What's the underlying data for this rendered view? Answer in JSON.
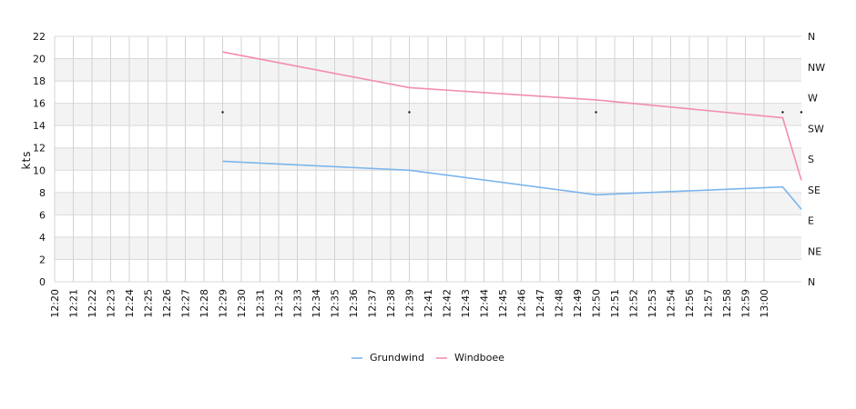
{
  "chart_data": {
    "type": "line",
    "ylabel": "kts",
    "ylim": [
      0,
      22
    ],
    "yticks": [
      0,
      2,
      4,
      6,
      8,
      10,
      12,
      14,
      16,
      18,
      20,
      22
    ],
    "direction_labels": [
      "N",
      "NE",
      "E",
      "SE",
      "S",
      "SW",
      "W",
      "NW",
      "N"
    ],
    "grid": true,
    "legend_position": "bottom",
    "categories": [
      "12:20",
      "12:21",
      "12:22",
      "12:23",
      "12:24",
      "12:25",
      "12:26",
      "12:27",
      "12:28",
      "12:29",
      "12:30",
      "12:31",
      "12:32",
      "12:33",
      "12:34",
      "12:35",
      "12:36",
      "12:37",
      "12:38",
      "12:39",
      "12:41",
      "12:42",
      "12:43",
      "12:44",
      "12:45",
      "12:46",
      "12:47",
      "12:48",
      "12:49",
      "12:50",
      "12:51",
      "12:52",
      "12:53",
      "12:54",
      "12:56",
      "12:57",
      "12:58",
      "12:59",
      "13:00"
    ],
    "x_minutes": [
      0,
      1,
      2,
      3,
      4,
      5,
      6,
      7,
      8,
      9,
      10,
      11,
      12,
      13,
      14,
      15,
      16,
      17,
      18,
      19,
      20,
      21,
      22,
      23,
      24,
      25,
      26,
      27,
      28,
      29,
      30,
      31,
      32,
      33,
      34,
      35,
      36,
      37,
      38
    ],
    "series": [
      {
        "name": "Grundwind",
        "color": "#7cb5ec",
        "points": [
          [
            9,
            10.8
          ],
          [
            19,
            10.0
          ],
          [
            29,
            7.8
          ],
          [
            39,
            8.5
          ],
          [
            40,
            6.5
          ]
        ]
      },
      {
        "name": "Windboee",
        "color": "#f28db2",
        "points": [
          [
            9,
            20.6
          ],
          [
            19,
            17.4
          ],
          [
            29,
            16.3
          ],
          [
            39,
            14.7
          ],
          [
            40,
            9.1
          ]
        ]
      }
    ],
    "direction_markers": [
      [
        9,
        15.2
      ],
      [
        19,
        15.2
      ],
      [
        29,
        15.2
      ],
      [
        39,
        15.2
      ],
      [
        40,
        15.2
      ]
    ]
  }
}
